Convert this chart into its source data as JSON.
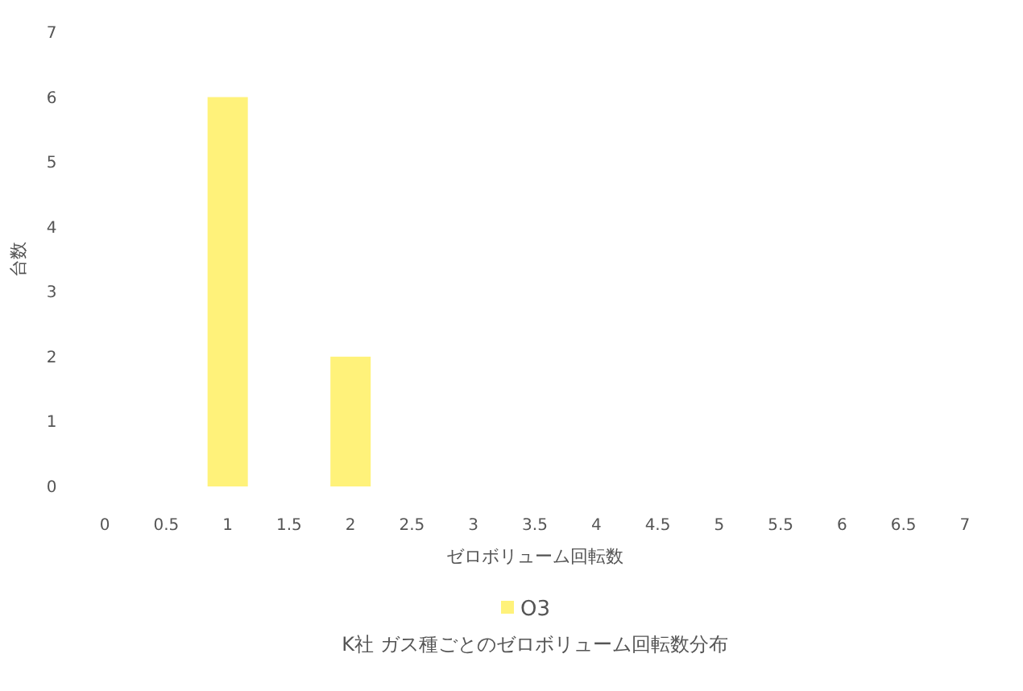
{
  "chart_data": {
    "type": "bar",
    "title": "K社 ガス種ごとのゼロボリューム回転数分布",
    "xlabel": "ゼロボリューム回転数",
    "ylabel": "台数",
    "categories": [
      "0",
      "0.5",
      "1",
      "1.5",
      "2",
      "2.5",
      "3",
      "3.5",
      "4",
      "4.5",
      "5",
      "5.5",
      "6",
      "6.5",
      "7"
    ],
    "series": [
      {
        "name": "O3",
        "color": "#fff27a",
        "values": [
          null,
          null,
          6,
          null,
          2,
          null,
          null,
          null,
          null,
          null,
          null,
          null,
          null,
          null,
          null
        ]
      }
    ],
    "ylim": [
      0,
      7
    ],
    "yticks": [
      0,
      1,
      2,
      3,
      4,
      5,
      6,
      7
    ],
    "legend": "bottom",
    "grid": false
  }
}
